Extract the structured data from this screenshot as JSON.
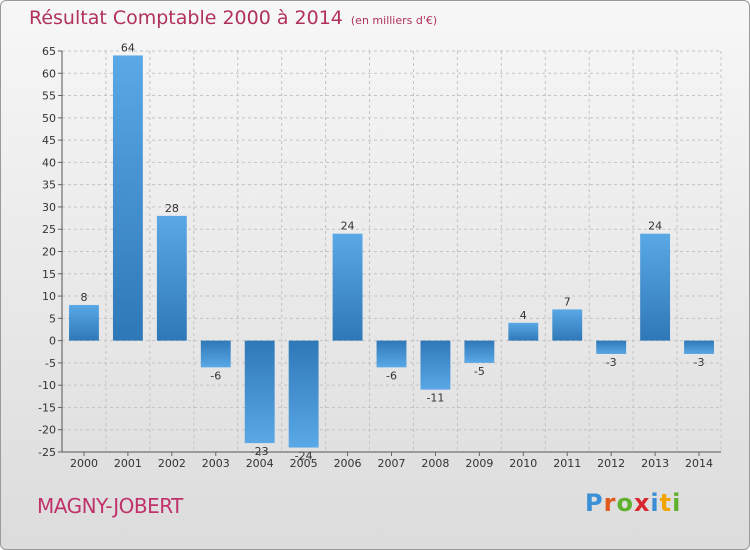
{
  "chart_data": {
    "type": "bar",
    "title": "Résultat Comptable 2000 à 2014",
    "subtitle": "(en milliers d'€)",
    "xlabel": "",
    "ylabel": "",
    "ylim": [
      -25,
      65
    ],
    "yticks": [
      -25,
      -20,
      -15,
      -10,
      -5,
      0,
      5,
      10,
      15,
      20,
      25,
      30,
      35,
      40,
      45,
      50,
      55,
      60,
      65
    ],
    "grid": true,
    "categories": [
      "2000",
      "2001",
      "2002",
      "2003",
      "2004",
      "2005",
      "2006",
      "2007",
      "2008",
      "2009",
      "2010",
      "2011",
      "2012",
      "2013",
      "2014"
    ],
    "values": [
      8,
      64,
      28,
      -6,
      -23,
      -24,
      24,
      -6,
      -11,
      -5,
      4,
      7,
      -3,
      24,
      -3
    ],
    "colors": {
      "bar_light": "#5aa8e6",
      "bar_dark": "#2f78b8",
      "grid": "#c4c4c4",
      "title": "#b0315e"
    }
  },
  "footer": {
    "commune": "MAGNY-JOBERT",
    "logo_letters": [
      "P",
      "r",
      "o",
      "x",
      "i",
      "t",
      "i"
    ],
    "logo_colors": [
      "#3b8fd6",
      "#e05a1e",
      "#5fb02c",
      "#d9262e",
      "#3b8fd6",
      "#f2a500",
      "#5fb02c"
    ]
  }
}
